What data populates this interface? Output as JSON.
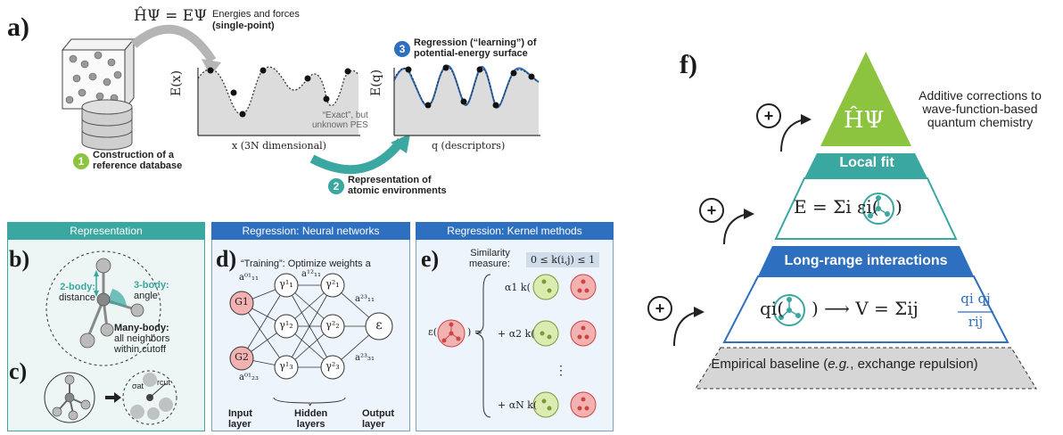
{
  "panel_a": {
    "label": "a)",
    "equation": "ĤΨ = EΨ",
    "energies_forces": "Energies and forces",
    "single_point": "(single-point)",
    "step1": {
      "num": "1",
      "line1": "Construction of a",
      "line2": "reference database"
    },
    "step2": {
      "num": "2",
      "line1": "Representation of",
      "line2": "atomic environments"
    },
    "step3": {
      "num": "3",
      "line1": "Regression (“learning”) of",
      "line2": "potential-energy surface"
    },
    "yaxis1": "E(x)",
    "xaxis1": "x (3N dimensional)",
    "exact_note_1": "“Exact”, but",
    "exact_note_2": "unknown PES",
    "yaxis2": "E(q)",
    "xaxis2": "q (descriptors)"
  },
  "representation": {
    "header": "Representation",
    "label_b": "b)",
    "two_body_1": "2-body:",
    "two_body_2": "distance",
    "three_body_1": "3-body:",
    "three_body_2": "angle",
    "many_body_1": "Many-body:",
    "many_body_2": "all neighbors",
    "many_body_3": "within cutoff",
    "label_c": "c)",
    "sigma": "σat",
    "rcut": "rcut"
  },
  "neural": {
    "header": "Regression: Neural networks",
    "label_d": "d)",
    "training": "“Training”: Optimize weights a",
    "input_layer_1": "Input",
    "input_layer_2": "layer",
    "hidden_layers_1": "Hidden",
    "hidden_layers_2": "layers",
    "output_layer_1": "Output",
    "output_layer_2": "layer",
    "nodes": {
      "g1": "G1",
      "g2": "G2",
      "h11": "γ¹₁",
      "h12": "γ¹₂",
      "h13": "γ¹₃",
      "h21": "γ²₁",
      "h22": "γ²₂",
      "h23": "γ²₃",
      "out": "ε"
    },
    "weights": {
      "a01_11": "a⁰¹₁₁",
      "a12_11": "a¹²₁₁",
      "a23_11": "a²³₁₁",
      "a01_23": "a⁰¹₂₃",
      "a23_31": "a²³₃₁"
    }
  },
  "kernel": {
    "header": "Regression: Kernel methods",
    "label_e": "e)",
    "similarity_1": "Similarity",
    "similarity_2": "measure:",
    "range": "0 ≤ k(i,j) ≤ 1",
    "lhs": "ε(",
    "lhs_close": ") =",
    "term1": "α1 k(",
    "term2": "+ α2 k(",
    "dots": "⋮",
    "termN": "+ αN k("
  },
  "panel_f": {
    "label": "f)",
    "top_symbol": "ĤΨ",
    "additive_1": "Additive corrections to",
    "additive_2": "wave-function-based",
    "additive_3": "quantum chemistry",
    "local_fit": "Local fit",
    "local_eq_left": "E = Σi εi(",
    "local_eq_right": ")",
    "long_range": "Long-range interactions",
    "long_eq_left": "qi(",
    "long_eq_right": ") ⟶ V = Σij",
    "frac_num": "qi qj",
    "frac_den": "rij",
    "baseline_prefix": "Empirical baseline (",
    "baseline_eg": "e.g.",
    "baseline_suffix": ", exchange repulsion)",
    "plus": "+"
  },
  "colors": {
    "teal": "#3aa7a0",
    "blue": "#2e6fbf",
    "green": "#8cc43f",
    "red_node": "#f3b2b2",
    "green_node": "#dcecb0"
  }
}
